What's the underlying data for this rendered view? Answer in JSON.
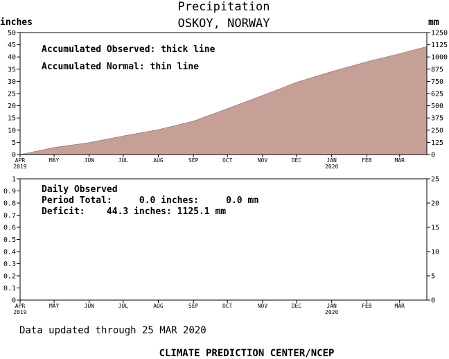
{
  "header": {
    "title": "Precipitation",
    "subtitle": "OSKOY, NORWAY"
  },
  "top_panel": {
    "left_unit": "inches",
    "right_unit": "mm",
    "note_observed": "Accumulated Observed: thick line",
    "note_normal": "Accumulated Normal: thin line"
  },
  "bottom_panel": {
    "daily_label": "Daily Observed",
    "period_total": "Period Total:     0.0 inches:     0.0 mm",
    "deficit": "Deficit:    44.3 inches: 1125.1 mm"
  },
  "footer": {
    "updated": "Data updated through 25 MAR 2020",
    "credit": "CLIMATE PREDICTION CENTER/NCEP"
  },
  "colors": {
    "fill": "#c6a097",
    "axis": "#000000",
    "background": "#ffffff"
  },
  "chart_data": [
    {
      "type": "area",
      "title": "Precipitation",
      "subtitle": "OSKOY, NORWAY",
      "ylabel": "inches",
      "ylabel_right": "mm",
      "ylim": [
        0,
        50
      ],
      "ylim_right": [
        0,
        1250
      ],
      "y_ticks": [
        0,
        5,
        10,
        15,
        20,
        25,
        30,
        35,
        40,
        45,
        50
      ],
      "y_ticks_right": [
        0,
        125,
        250,
        375,
        500,
        625,
        750,
        875,
        1000,
        1125,
        1250
      ],
      "x_ticks": [
        {
          "label": "APR",
          "year": "2019",
          "day": 0
        },
        {
          "label": "MAY",
          "year": "",
          "day": 30
        },
        {
          "label": "JUN",
          "year": "",
          "day": 61
        },
        {
          "label": "JUL",
          "year": "",
          "day": 91
        },
        {
          "label": "AUG",
          "year": "",
          "day": 122
        },
        {
          "label": "SEP",
          "year": "",
          "day": 153
        },
        {
          "label": "OCT",
          "year": "",
          "day": 183
        },
        {
          "label": "NOV",
          "year": "",
          "day": 214
        },
        {
          "label": "DEC",
          "year": "",
          "day": 244
        },
        {
          "label": "JAN",
          "year": "2020",
          "day": 275
        },
        {
          "label": "FEB",
          "year": "",
          "day": 306
        },
        {
          "label": "MAR",
          "year": "",
          "day": 335
        }
      ],
      "xlim_days": [
        0,
        359
      ],
      "series": [
        {
          "name": "Accumulated Normal",
          "x_days": [
            0,
            30,
            61,
            91,
            122,
            153,
            183,
            214,
            244,
            275,
            306,
            335,
            359
          ],
          "values": [
            0,
            2.9,
            4.9,
            7.6,
            10.2,
            13.7,
            18.8,
            24.2,
            29.6,
            34.0,
            38.0,
            41.3,
            44.3
          ]
        }
      ]
    },
    {
      "type": "bar",
      "title": "Daily Observed",
      "ylim": [
        0,
        1
      ],
      "ylim_right": [
        0,
        25
      ],
      "y_ticks": [
        0,
        0.1,
        0.2,
        0.3,
        0.4,
        0.5,
        0.6,
        0.7,
        0.8,
        0.9,
        1
      ],
      "y_ticks_right": [
        0,
        5,
        10,
        15,
        20,
        25
      ],
      "values": []
    }
  ]
}
